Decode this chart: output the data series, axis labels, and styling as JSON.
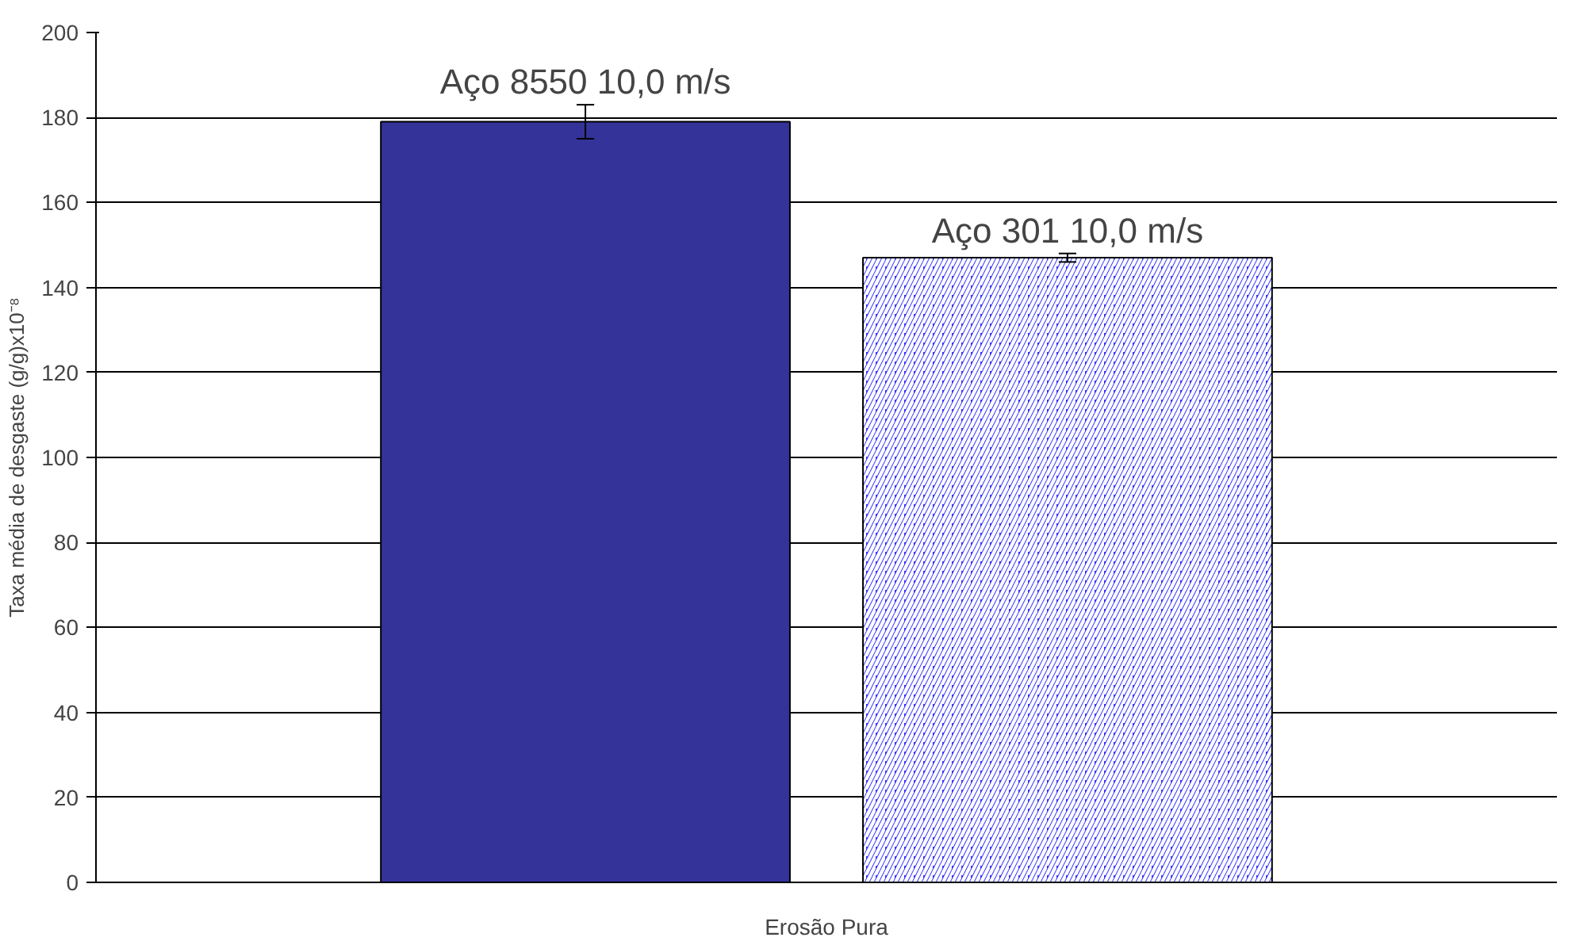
{
  "chart_data": {
    "type": "bar",
    "ylabel": "Taxa média de desgaste (g/g)x10⁻⁸",
    "categories": [
      "Erosão Pura"
    ],
    "series": [
      {
        "name": "Aço 8550 10,0 m/s",
        "color": "#333399",
        "values": [
          179
        ],
        "errors": [
          4
        ]
      },
      {
        "name": "Aço 301 10,0 m/s",
        "color": "#3333ff",
        "values": [
          147
        ],
        "errors": [
          1
        ]
      }
    ],
    "ylim": [
      0,
      200
    ],
    "yticks": [
      0,
      20,
      40,
      60,
      80,
      100,
      120,
      140,
      160,
      180,
      200
    ],
    "grid": "y"
  }
}
